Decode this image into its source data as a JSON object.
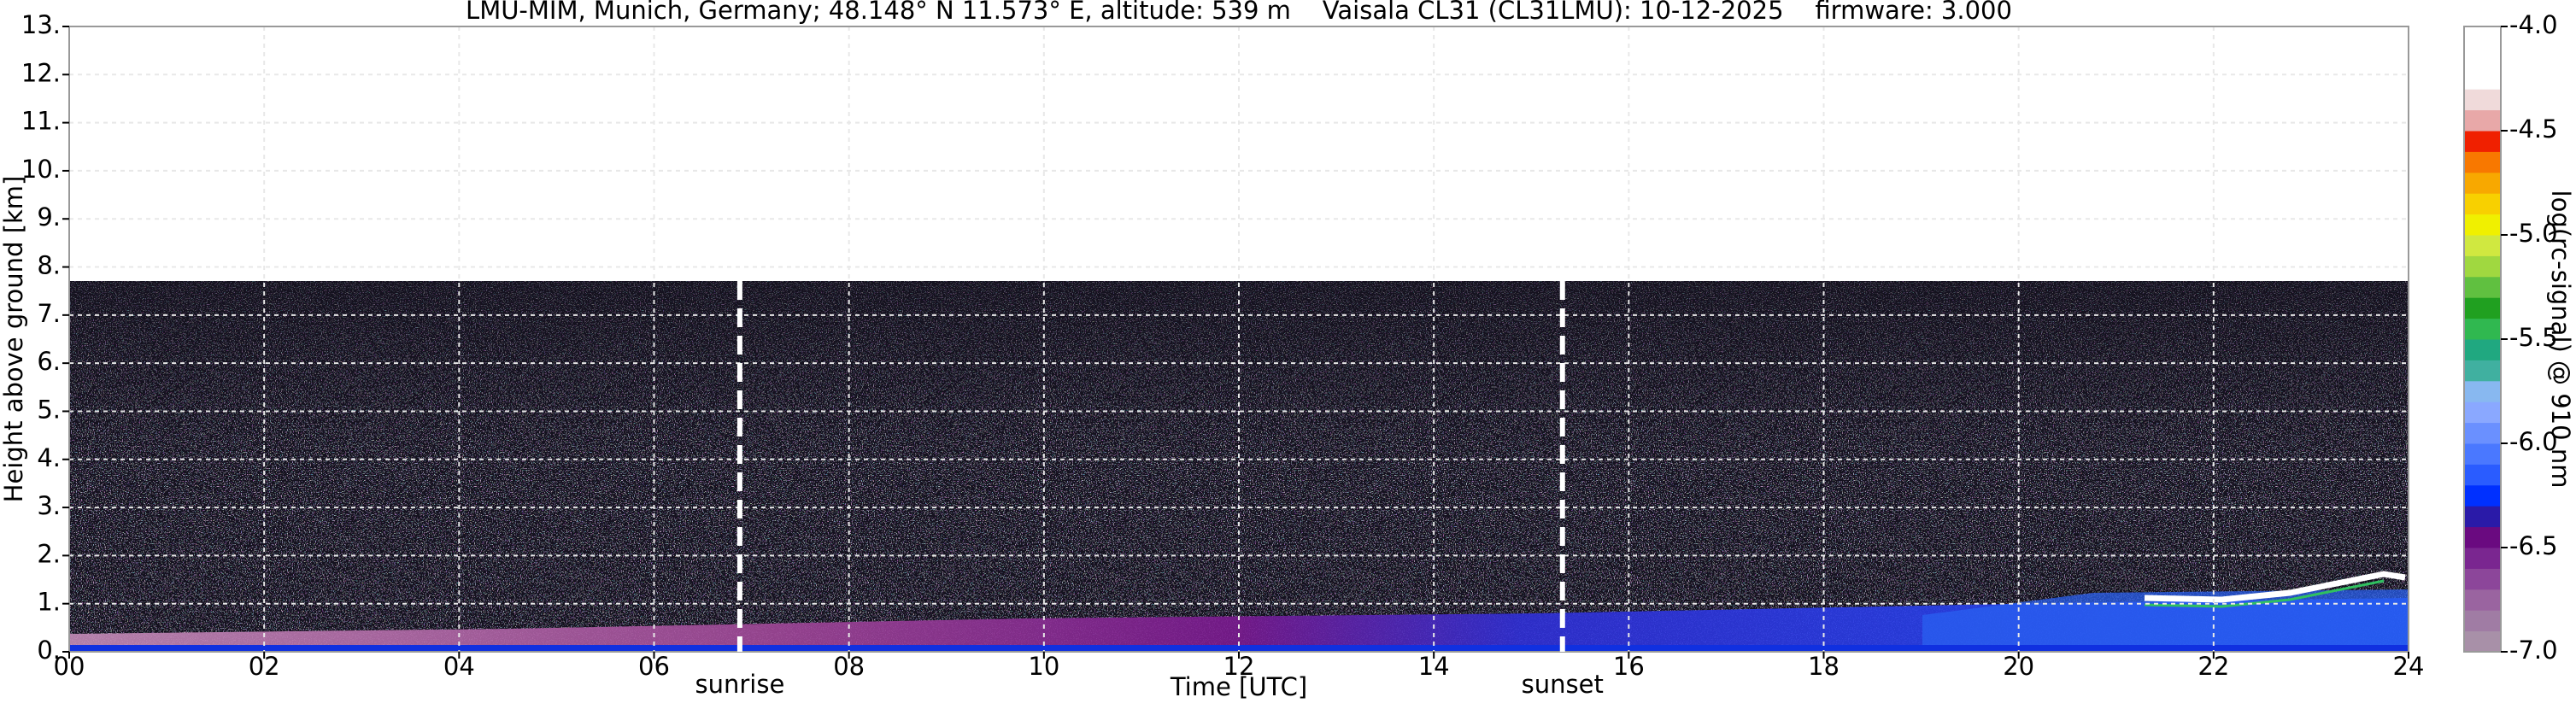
{
  "chart_data": {
    "type": "heatmap",
    "title": "LMU-MIM, Munich, Germany; 48.148° N 11.573° E, altitude: 539 m    Vaisala CL31 (CL31LMU): 10-12-2025    firmware: 3.000",
    "xlabel": "Time [UTC]",
    "ylabel": "Height above ground [km]",
    "xlim": [
      0,
      24
    ],
    "xticks": [
      {
        "value": 0,
        "label": "00"
      },
      {
        "value": 2,
        "label": "02"
      },
      {
        "value": 4,
        "label": "04"
      },
      {
        "value": 6,
        "label": "06"
      },
      {
        "value": 8,
        "label": "08"
      },
      10,
      12,
      14,
      16,
      18,
      20,
      22,
      24
    ],
    "ylim": [
      0,
      13
    ],
    "yticks": [
      {
        "value": 0,
        "label": "0."
      },
      {
        "value": 1,
        "label": "1."
      },
      {
        "value": 2,
        "label": "2."
      },
      {
        "value": 3,
        "label": "3."
      },
      {
        "value": 4,
        "label": "4."
      },
      {
        "value": 5,
        "label": "5."
      },
      {
        "value": 6,
        "label": "6."
      },
      {
        "value": 7,
        "label": "7."
      },
      {
        "value": 8,
        "label": "8."
      },
      {
        "value": 9,
        "label": "9."
      },
      {
        "value": 10,
        "label": "10."
      },
      {
        "value": 11,
        "label": "11."
      },
      {
        "value": 12,
        "label": "12."
      },
      {
        "value": 13,
        "label": "13."
      }
    ],
    "grid": true,
    "annotations": [
      {
        "text": "sunrise",
        "x": 6.88
      },
      {
        "text": "sunset",
        "x": 15.32
      }
    ],
    "colorbar": {
      "label": "log(rc-signal) @ 910 nm",
      "lim": [
        -7,
        -4
      ],
      "ticks": [
        {
          "value": -7,
          "label": "-7.0"
        },
        {
          "value": -6.5,
          "label": "-6.5"
        },
        {
          "value": -6,
          "label": "-6.0"
        },
        {
          "value": -5.5,
          "label": "-5.5"
        },
        {
          "value": -5,
          "label": "-5.0"
        },
        {
          "value": -4.5,
          "label": "-4.5"
        },
        {
          "value": -4,
          "label": "-4.0"
        }
      ],
      "colors": [
        "#a890a8",
        "#a07ca4",
        "#9a64a0",
        "#8c469a",
        "#7a2690",
        "#6a0a80",
        "#2a1aa8",
        "#0030ff",
        "#2a5cff",
        "#4a78ff",
        "#6a90ff",
        "#8aa8ff",
        "#88b8f0",
        "#40b0a0",
        "#20a880",
        "#30b850",
        "#20a020",
        "#60c040",
        "#a0d840",
        "#d0e840",
        "#f0f000",
        "#f8d000",
        "#f8a800",
        "#f87800",
        "#f02000",
        "#e8a8a8",
        "#f0dada",
        "#ffffff",
        "#ffffff",
        "#ffffff"
      ]
    }
  }
}
